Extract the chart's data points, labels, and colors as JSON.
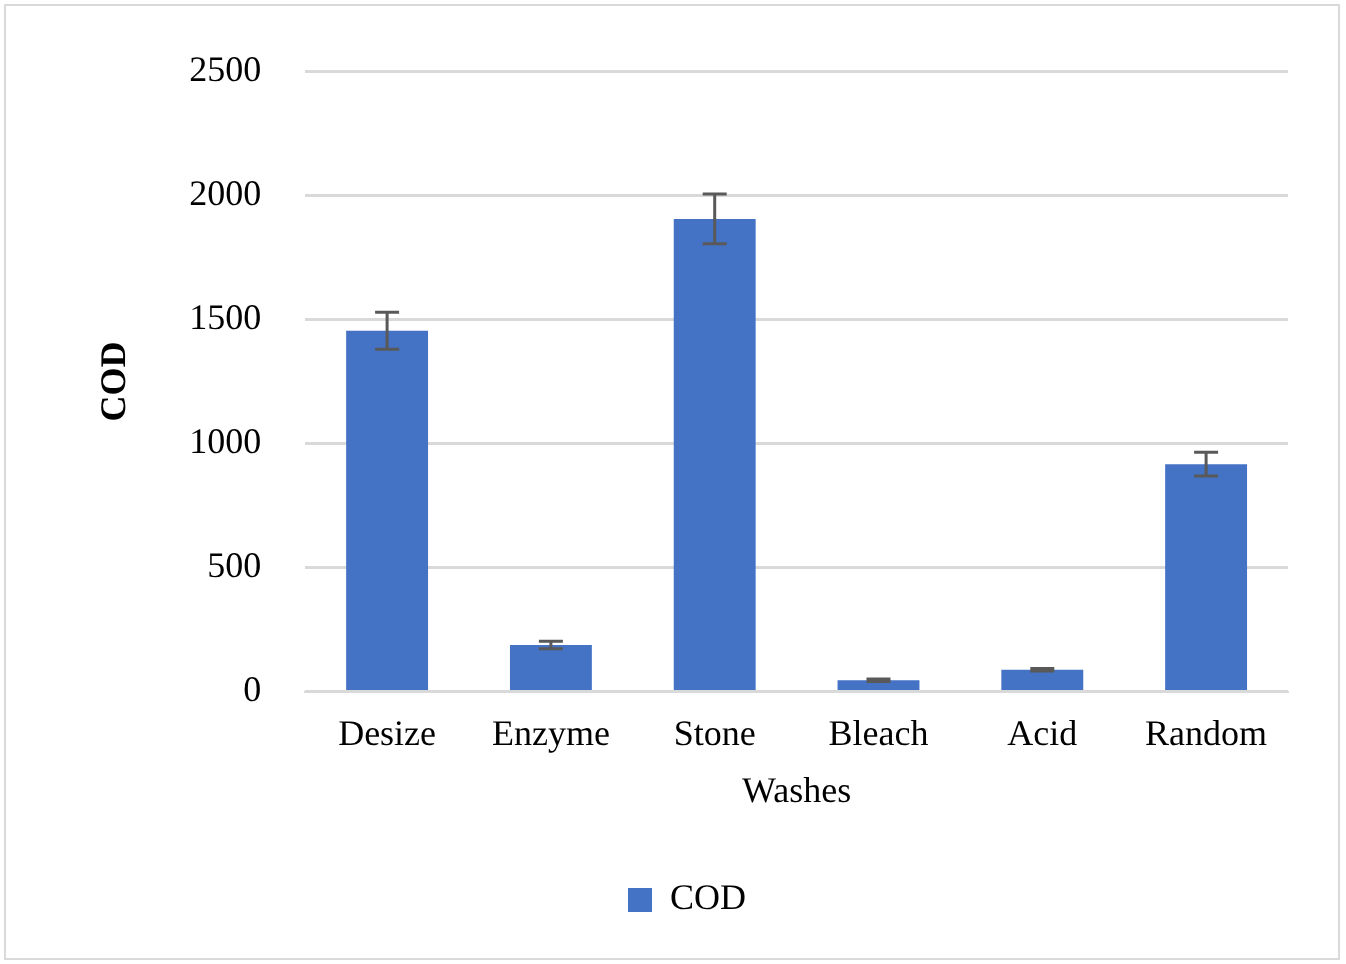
{
  "chart_data": {
    "type": "bar",
    "xlabel": "Washes",
    "ylabel": "COD",
    "categories": [
      "Desize",
      "Enzyme",
      "Stone",
      "Bleach",
      "Acid",
      "Random"
    ],
    "series": [
      {
        "name": "COD",
        "color": "#4472c4",
        "values": [
          1455,
          188,
          1906,
          46,
          88,
          917
        ],
        "errors": [
          75,
          15,
          100,
          5,
          5,
          48
        ]
      }
    ],
    "ylim": [
      0,
      2500
    ],
    "yticks": [
      0,
      500,
      1000,
      1500,
      2000,
      2500
    ],
    "grid": "y",
    "legend": "bottom"
  }
}
